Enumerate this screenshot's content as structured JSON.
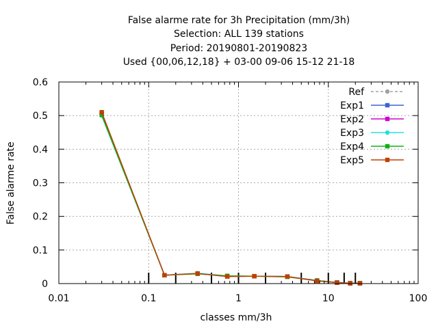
{
  "chart_data": {
    "type": "line",
    "title_lines": [
      "False alarme rate  for 3h Precipitation (mm/3h)",
      "Selection: ALL    139 stations",
      "Period: 20190801-20190823",
      "Used {00,06,12,18} + 03-00 09-06 15-12 21-18"
    ],
    "xlabel": "classes mm/3h",
    "ylabel": "False alarme rate",
    "xscale": "log",
    "xlim": [
      0.01,
      100
    ],
    "ylim": [
      0,
      0.6
    ],
    "x_ticks": [
      0.01,
      0.1,
      1,
      10,
      100
    ],
    "x_tick_labels": [
      "0.01",
      "0.1",
      "1",
      "10",
      "100"
    ],
    "y_ticks": [
      0,
      0.1,
      0.2,
      0.3,
      0.4,
      0.5,
      0.6
    ],
    "y_tick_labels": [
      "0",
      "0.1",
      "0.2",
      "0.3",
      "0.4",
      "0.5",
      "0.6"
    ],
    "grid": true,
    "legend_position": "top-right",
    "class_thresholds": [
      0.1,
      0.2,
      0.5,
      1,
      2,
      5,
      10,
      15,
      20
    ],
    "x": [
      0.03,
      0.15,
      0.35,
      0.75,
      1.5,
      3.5,
      7.5,
      12.5,
      17.5,
      22.5
    ],
    "series": [
      {
        "name": "Ref",
        "color": "#a0a0a0",
        "dash": true,
        "marker": "circle",
        "values": [
          0.5,
          0.025,
          0.03,
          0.022,
          0.022,
          0.021,
          0.01,
          0.003,
          0.001,
          0.001
        ]
      },
      {
        "name": "Exp1",
        "color": "#3b62d6",
        "dash": false,
        "marker": "square",
        "values": [
          0.505,
          0.025,
          0.03,
          0.022,
          0.022,
          0.021,
          0.009,
          0.003,
          0.001,
          0.001
        ]
      },
      {
        "name": "Exp2",
        "color": "#d000d0",
        "dash": false,
        "marker": "square",
        "values": [
          0.505,
          0.025,
          0.03,
          0.022,
          0.022,
          0.021,
          0.009,
          0.003,
          0.001,
          0.001
        ]
      },
      {
        "name": "Exp3",
        "color": "#20e0e0",
        "dash": false,
        "marker": "circle",
        "values": [
          0.5,
          0.025,
          0.031,
          0.023,
          0.022,
          0.021,
          0.009,
          0.003,
          0.001,
          0.001
        ]
      },
      {
        "name": "Exp4",
        "color": "#10b010",
        "dash": false,
        "marker": "square",
        "values": [
          0.502,
          0.025,
          0.029,
          0.023,
          0.022,
          0.02,
          0.009,
          0.003,
          0.001,
          0.001
        ]
      },
      {
        "name": "Exp5",
        "color": "#c04000",
        "dash": false,
        "marker": "square",
        "values": [
          0.51,
          0.025,
          0.03,
          0.021,
          0.022,
          0.021,
          0.008,
          0.003,
          0.001,
          0.001
        ]
      }
    ]
  }
}
